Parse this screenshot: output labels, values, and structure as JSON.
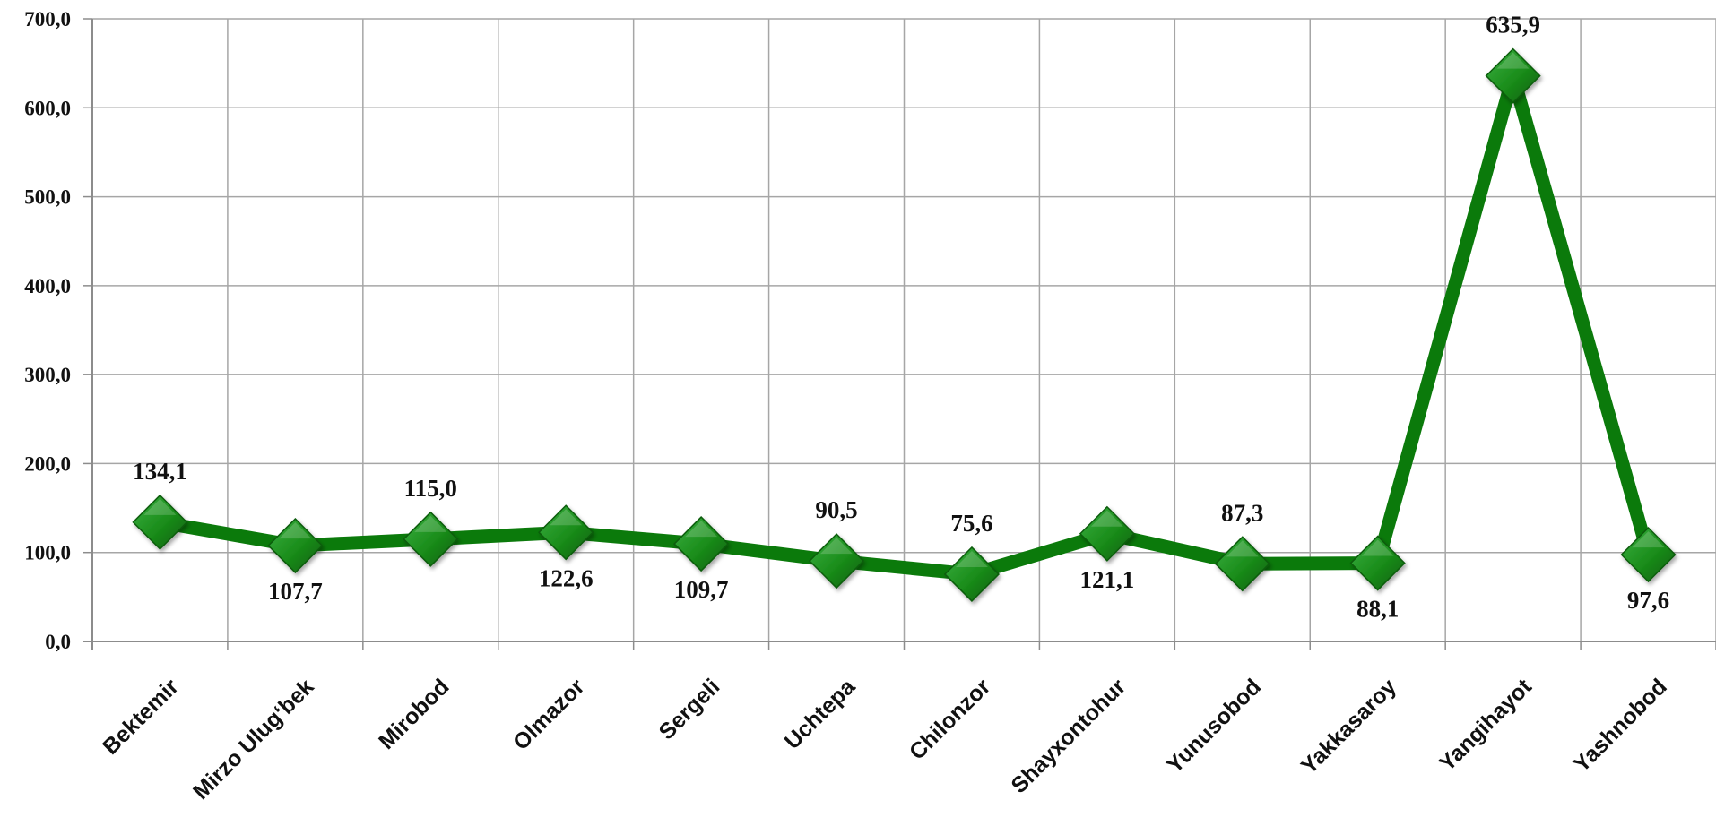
{
  "chart_data": {
    "type": "line",
    "title": "",
    "xlabel": "",
    "ylabel": "",
    "categories": [
      "Bektemir",
      "Mirzo Ulug‘bek",
      "Mirobod",
      "Olmazor",
      "Sergeli",
      "Uchtepa",
      "Chilonzor",
      "Shayxontohur",
      "Yunusobod",
      "Yakkasaroy",
      "Yangihayot",
      "Yashnobod"
    ],
    "series": [
      {
        "values": [
          134.1,
          107.7,
          115.0,
          122.6,
          109.7,
          90.5,
          75.6,
          121.1,
          87.3,
          88.1,
          635.9,
          97.6
        ],
        "data_labels": [
          "134,1",
          "107,7",
          "115,0",
          "122,6",
          "109,7",
          "90,5",
          "75,6",
          "121,1",
          "87,3",
          "88,1",
          "635,9",
          "97,6"
        ],
        "label_positions": [
          "above",
          "below",
          "above",
          "below",
          "below",
          "above",
          "above",
          "below",
          "above",
          "below",
          "above",
          "below"
        ]
      }
    ],
    "ylim": [
      0,
      700
    ],
    "y_ticks": [
      0,
      100,
      200,
      300,
      400,
      500,
      600,
      700
    ],
    "y_tick_labels": [
      "0,0",
      "100,0",
      "200,0",
      "300,0",
      "400,0",
      "500,0",
      "600,0",
      "700,0"
    ],
    "grid": true,
    "legend": "none",
    "line_color": "#0b7a0b",
    "marker": "diamond",
    "marker_color": "#1a8c1a",
    "grid_color": "#a6a6a6"
  }
}
